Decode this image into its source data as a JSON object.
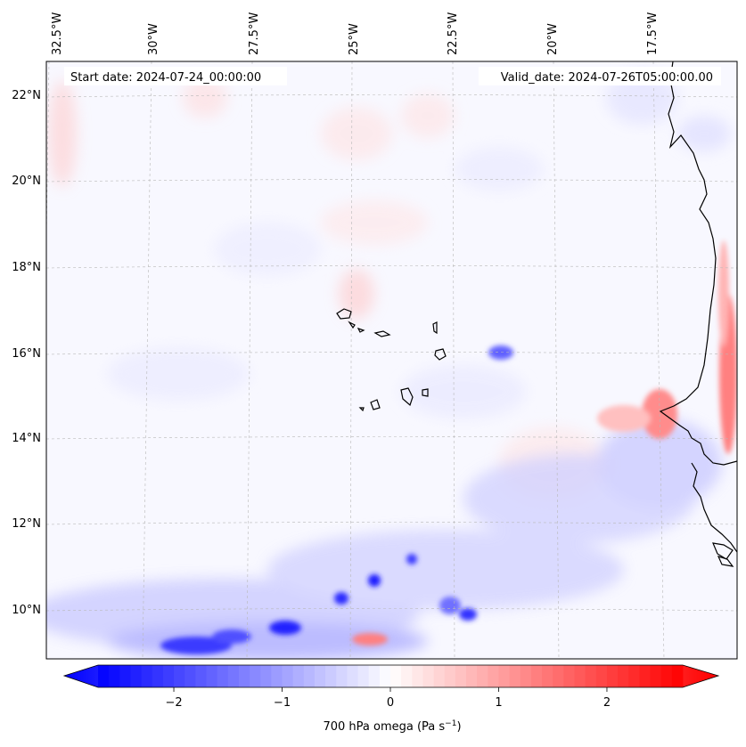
{
  "map": {
    "start_date_label": "Start date: 2024-07-24_00:00:00",
    "valid_date_label": "Valid_date: 2024-07-26T05:00:00.00",
    "lon_labels": [
      "32.5°W",
      "30°W",
      "27.5°W",
      "25°W",
      "22.5°W",
      "20°W",
      "17.5°W"
    ],
    "lat_labels": [
      "22°N",
      "20°N",
      "18°N",
      "16°N",
      "14°N",
      "12°N",
      "10°N"
    ],
    "field": "700 hPa omega"
  },
  "colorbar": {
    "label_text": "700 hPa omega (Pa s",
    "label_exp": "−1",
    "label_close": ")",
    "ticks": [
      "−2",
      "−1",
      "0",
      "1",
      "2"
    ],
    "range": [
      -2.7,
      2.7
    ],
    "tick_values": [
      -2,
      -1,
      0,
      1,
      2
    ],
    "colors": {
      "min": "#0000ff",
      "mid": "#ffffff",
      "max": "#ff0000"
    }
  }
}
